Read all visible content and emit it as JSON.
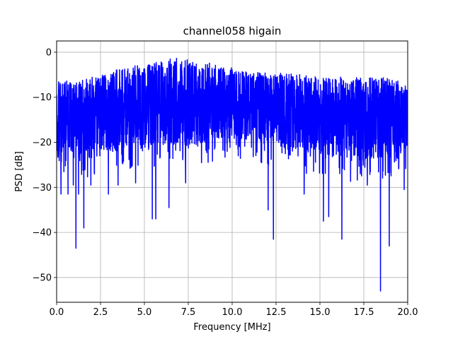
{
  "chart_data": {
    "type": "line",
    "title": "channel058 higain",
    "xlabel": "Frequency [MHz]",
    "ylabel": "PSD [dB]",
    "xlim": [
      0,
      20
    ],
    "ylim": [
      -55.5,
      2.5
    ],
    "xticks": [
      0,
      2.5,
      5,
      7.5,
      10,
      12.5,
      15,
      17.5,
      20
    ],
    "xtick_labels": [
      "0.0",
      "2.5",
      "5.0",
      "7.5",
      "10.0",
      "12.5",
      "15.0",
      "17.5",
      "20.0"
    ],
    "yticks": [
      0,
      -10,
      -20,
      -30,
      -40,
      -50
    ],
    "ytick_labels": [
      "0",
      "−10",
      "−20",
      "−30",
      "−40",
      "−50"
    ],
    "grid": true,
    "series": [
      {
        "color": "#0000ff",
        "envelope_x": [
          0,
          1,
          2,
          3,
          4,
          5,
          6,
          7,
          8,
          9,
          10,
          11,
          12,
          13,
          14,
          15,
          16,
          17,
          18,
          19,
          20
        ],
        "envelope_upper": [
          -5.5,
          -6.5,
          -5.5,
          -4,
          -3,
          -2.5,
          -1.5,
          -1,
          -2,
          -2.5,
          -3.5,
          -4,
          -4.5,
          -4.5,
          -5,
          -5,
          -5.5,
          -5.5,
          -5,
          -5.5,
          -7
        ],
        "envelope_lower": [
          -24,
          -23,
          -24,
          -23,
          -22,
          -22.5,
          -21,
          -21,
          -21.5,
          -20,
          -19.5,
          -20,
          -21,
          -22,
          -23,
          -23,
          -24,
          -25,
          -24,
          -24,
          -22
        ],
        "minima": [
          {
            "x": 0.25,
            "y": -31.5
          },
          {
            "x": 0.65,
            "y": -31.5
          },
          {
            "x": 0.95,
            "y": -29.5
          },
          {
            "x": 1.1,
            "y": -43.5
          },
          {
            "x": 1.25,
            "y": -31.5
          },
          {
            "x": 1.55,
            "y": -39
          },
          {
            "x": 1.95,
            "y": -29.5
          },
          {
            "x": 2.95,
            "y": -31.5
          },
          {
            "x": 3.5,
            "y": -29.5
          },
          {
            "x": 4.5,
            "y": -29
          },
          {
            "x": 5.45,
            "y": -37
          },
          {
            "x": 5.65,
            "y": -37
          },
          {
            "x": 6.4,
            "y": -34.5
          },
          {
            "x": 7.35,
            "y": -29
          },
          {
            "x": 12.05,
            "y": -35
          },
          {
            "x": 12.35,
            "y": -41.5
          },
          {
            "x": 14.1,
            "y": -31.5
          },
          {
            "x": 15.2,
            "y": -37.5
          },
          {
            "x": 15.5,
            "y": -36.5
          },
          {
            "x": 16.25,
            "y": -41.5
          },
          {
            "x": 17.7,
            "y": -29.5
          },
          {
            "x": 18.45,
            "y": -53
          },
          {
            "x": 18.95,
            "y": -43
          },
          {
            "x": 19.8,
            "y": -30.5
          }
        ]
      }
    ]
  }
}
